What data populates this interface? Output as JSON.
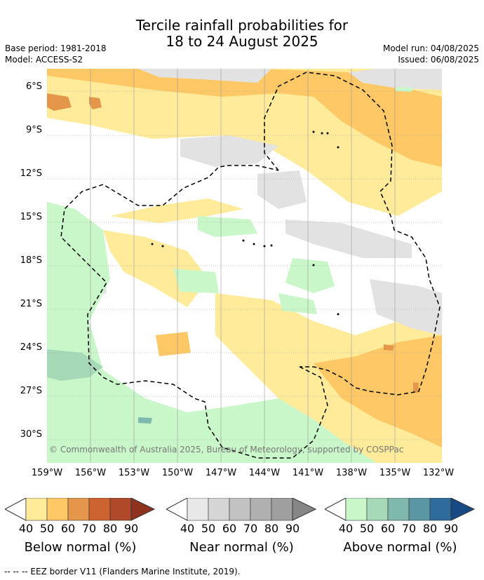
{
  "header": {
    "title_line1": "Tercile rainfall probabilities for",
    "title_line2": "18 to 24 August 2025",
    "base_period": "Base period: 1981-2018",
    "model": "Model: ACCESS-S2",
    "model_run": "Model run: 04/08/2025",
    "issued": "Issued: 06/08/2025"
  },
  "map": {
    "y_labels": [
      "6°S",
      "9°S",
      "12°S",
      "15°S",
      "18°S",
      "21°S",
      "24°S",
      "27°S",
      "30°S"
    ],
    "x_labels": [
      "159°W",
      "156°W",
      "153°W",
      "150°W",
      "147°W",
      "144°W",
      "141°W",
      "138°W",
      "135°W",
      "132°W"
    ],
    "copyright": "© Commonwealth of Australia 2025, Bureau of Meteorology, supported by COSPPac"
  },
  "colorbars": [
    {
      "label": "Below normal (%)",
      "ticks": [
        "40",
        "50",
        "60",
        "70",
        "80",
        "90"
      ],
      "colors": [
        "#ffeb99",
        "#fdc865",
        "#e4974a",
        "#cd6330",
        "#b0482a",
        "#8f321e"
      ]
    },
    {
      "label": "Near normal (%)",
      "ticks": [
        "40",
        "50",
        "60",
        "70",
        "80",
        "90"
      ],
      "colors": [
        "#e8e8e8",
        "#d5d5d5",
        "#c2c2c2",
        "#b0b0b0",
        "#9f9f9f",
        "#868686"
      ]
    },
    {
      "label": "Above normal (%)",
      "ticks": [
        "40",
        "50",
        "60",
        "70",
        "80",
        "90"
      ],
      "colors": [
        "#c9f7c9",
        "#a6d9b7",
        "#7fb8ad",
        "#5b96a5",
        "#2f6b9d",
        "#174a85"
      ]
    }
  ],
  "footer": {
    "eez_note": "-- -- -- EEZ border V11 (Flanders Marine Institute, 2019)."
  },
  "colors": {
    "below_light": "#ffeb99",
    "below_mid": "#fdc865",
    "below_dark": "#e4974a",
    "near": "#e2e2e2",
    "above_light": "#c9f7c9",
    "above_mid": "#a6d9b7",
    "above_dark": "#7fb8ad"
  }
}
